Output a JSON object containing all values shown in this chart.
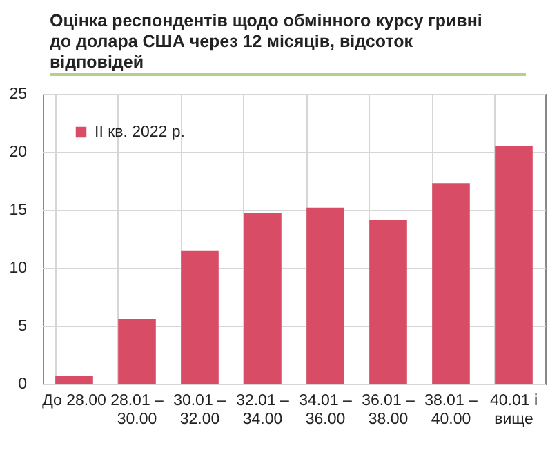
{
  "chart_data": {
    "type": "bar",
    "title": "Оцінка респондентів щодо обмінного курсу гривні до долара США через 12 місяців, відсоток відповідей",
    "categories": [
      "До 28.00",
      "28.01 – 30.00",
      "30.01 – 32.00",
      "32.01 – 34.00",
      "34.01 – 36.00",
      "36.01 – 38.00",
      "38.01 – 40.00",
      "40.01 і вище"
    ],
    "series": [
      {
        "name": "II кв. 2022 р.",
        "color": "#d94c66",
        "values": [
          0.7,
          5.6,
          11.5,
          14.7,
          15.2,
          14.1,
          17.3,
          20.5
        ]
      }
    ],
    "ylim": [
      0,
      25
    ],
    "yticks": [
      0,
      5,
      10,
      15,
      20,
      25
    ],
    "grid": true,
    "legend": "top left"
  }
}
